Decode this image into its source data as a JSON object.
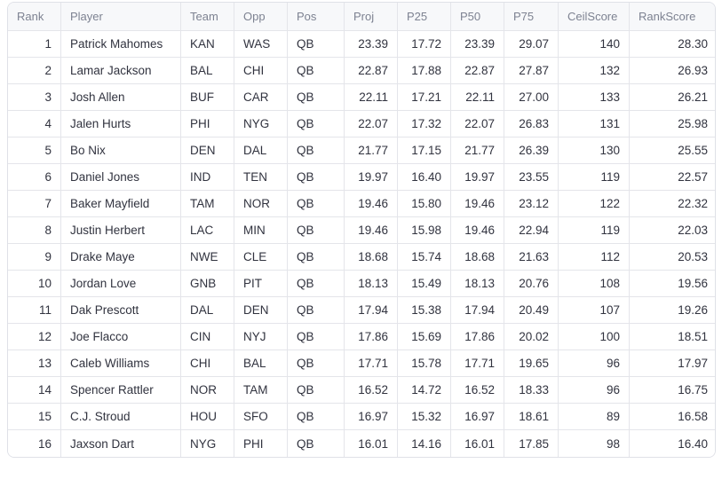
{
  "table": {
    "columns": [
      {
        "key": "rank",
        "label": "Rank",
        "align": "right"
      },
      {
        "key": "player",
        "label": "Player",
        "align": "left"
      },
      {
        "key": "team",
        "label": "Team",
        "align": "left"
      },
      {
        "key": "opp",
        "label": "Opp",
        "align": "left"
      },
      {
        "key": "pos",
        "label": "Pos",
        "align": "left"
      },
      {
        "key": "proj",
        "label": "Proj",
        "align": "right"
      },
      {
        "key": "p25",
        "label": "P25",
        "align": "right"
      },
      {
        "key": "p50",
        "label": "P50",
        "align": "right"
      },
      {
        "key": "p75",
        "label": "P75",
        "align": "right"
      },
      {
        "key": "ceilscore",
        "label": "CeilScore",
        "align": "right"
      },
      {
        "key": "rankscore",
        "label": "RankScore",
        "align": "right"
      }
    ],
    "rows": [
      [
        "1",
        "Patrick Mahomes",
        "KAN",
        "WAS",
        "QB",
        "23.39",
        "17.72",
        "23.39",
        "29.07",
        "140",
        "28.30"
      ],
      [
        "2",
        "Lamar Jackson",
        "BAL",
        "CHI",
        "QB",
        "22.87",
        "17.88",
        "22.87",
        "27.87",
        "132",
        "26.93"
      ],
      [
        "3",
        "Josh Allen",
        "BUF",
        "CAR",
        "QB",
        "22.11",
        "17.21",
        "22.11",
        "27.00",
        "133",
        "26.21"
      ],
      [
        "4",
        "Jalen Hurts",
        "PHI",
        "NYG",
        "QB",
        "22.07",
        "17.32",
        "22.07",
        "26.83",
        "131",
        "25.98"
      ],
      [
        "5",
        "Bo Nix",
        "DEN",
        "DAL",
        "QB",
        "21.77",
        "17.15",
        "21.77",
        "26.39",
        "130",
        "25.55"
      ],
      [
        "6",
        "Daniel Jones",
        "IND",
        "TEN",
        "QB",
        "19.97",
        "16.40",
        "19.97",
        "23.55",
        "119",
        "22.57"
      ],
      [
        "7",
        "Baker Mayfield",
        "TAM",
        "NOR",
        "QB",
        "19.46",
        "15.80",
        "19.46",
        "23.12",
        "122",
        "22.32"
      ],
      [
        "8",
        "Justin Herbert",
        "LAC",
        "MIN",
        "QB",
        "19.46",
        "15.98",
        "19.46",
        "22.94",
        "119",
        "22.03"
      ],
      [
        "9",
        "Drake Maye",
        "NWE",
        "CLE",
        "QB",
        "18.68",
        "15.74",
        "18.68",
        "21.63",
        "112",
        "20.53"
      ],
      [
        "10",
        "Jordan Love",
        "GNB",
        "PIT",
        "QB",
        "18.13",
        "15.49",
        "18.13",
        "20.76",
        "108",
        "19.56"
      ],
      [
        "11",
        "Dak Prescott",
        "DAL",
        "DEN",
        "QB",
        "17.94",
        "15.38",
        "17.94",
        "20.49",
        "107",
        "19.26"
      ],
      [
        "12",
        "Joe Flacco",
        "CIN",
        "NYJ",
        "QB",
        "17.86",
        "15.69",
        "17.86",
        "20.02",
        "100",
        "18.51"
      ],
      [
        "13",
        "Caleb Williams",
        "CHI",
        "BAL",
        "QB",
        "17.71",
        "15.78",
        "17.71",
        "19.65",
        "96",
        "17.97"
      ],
      [
        "14",
        "Spencer Rattler",
        "NOR",
        "TAM",
        "QB",
        "16.52",
        "14.72",
        "16.52",
        "18.33",
        "96",
        "16.75"
      ],
      [
        "15",
        "C.J. Stroud",
        "HOU",
        "SFO",
        "QB",
        "16.97",
        "15.32",
        "16.97",
        "18.61",
        "89",
        "16.58"
      ],
      [
        "16",
        "Jaxson Dart",
        "NYG",
        "PHI",
        "QB",
        "16.01",
        "14.16",
        "16.01",
        "17.85",
        "98",
        "16.40"
      ]
    ]
  },
  "colors": {
    "header_bg": "#f7f8fa",
    "header_text": "#7d8291",
    "cell_text": "#31333f",
    "border": "#e4e5ea"
  }
}
